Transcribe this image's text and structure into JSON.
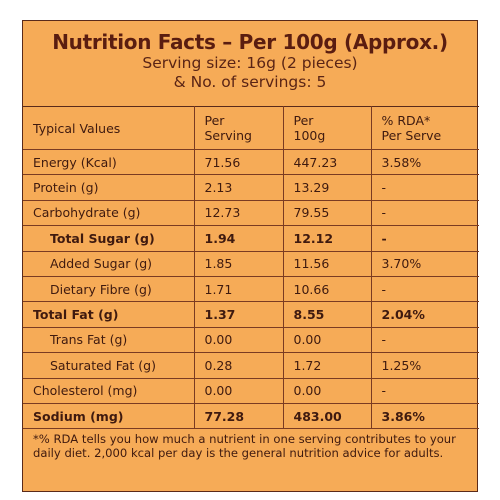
{
  "title": "Nutrition Facts – Per 100g (Approx.)",
  "serving_size": "Serving size: 16g (2 pieces)",
  "servings": "& No. of servings: 5",
  "headers": {
    "col1": "Typical Values",
    "col2_line1": "Per",
    "col2_line2": "Serving",
    "col3_line1": "Per",
    "col3_line2": "100g",
    "col4_line1": "% RDA*",
    "col4_line2": "Per Serve"
  },
  "rows": [
    {
      "name": "Energy (Kcal)",
      "per_serving": "71.56",
      "per_100g": "447.23",
      "rda": "3.58%"
    },
    {
      "name": "Protein (g)",
      "per_serving": "2.13",
      "per_100g": "13.29",
      "rda": "-"
    },
    {
      "name": "Carbohydrate (g)",
      "per_serving": "12.73",
      "per_100g": "79.55",
      "rda": "-"
    },
    {
      "name": "Total Sugar (g)",
      "per_serving": "1.94",
      "per_100g": "12.12",
      "rda": "-"
    },
    {
      "name": "Added Sugar (g)",
      "per_serving": "1.85",
      "per_100g": "11.56",
      "rda": "3.70%"
    },
    {
      "name": "Dietary Fibre (g)",
      "per_serving": "1.71",
      "per_100g": "10.66",
      "rda": "-"
    },
    {
      "name": "Total Fat (g)",
      "per_serving": "1.37",
      "per_100g": "8.55",
      "rda": "2.04%"
    },
    {
      "name": "Trans Fat (g)",
      "per_serving": "0.00",
      "per_100g": "0.00",
      "rda": "-"
    },
    {
      "name": "Saturated Fat (g)",
      "per_serving": "0.28",
      "per_100g": "1.72",
      "rda": "1.25%"
    },
    {
      "name": "Cholesterol (mg)",
      "per_serving": "0.00",
      "per_100g": "0.00",
      "rda": "-"
    },
    {
      "name": "Sodium (mg)",
      "per_serving": "77.28",
      "per_100g": "483.00",
      "rda": "3.86%"
    }
  ],
  "footnote": "*% RDA tells you how much a nutrient in one serving contributes to your daily diet. 2,000 kcal per day is the general nutrition advice for adults.",
  "colors": {
    "background": "#f6ab57",
    "title": "#5a1d10",
    "border": "#7a3b22"
  }
}
